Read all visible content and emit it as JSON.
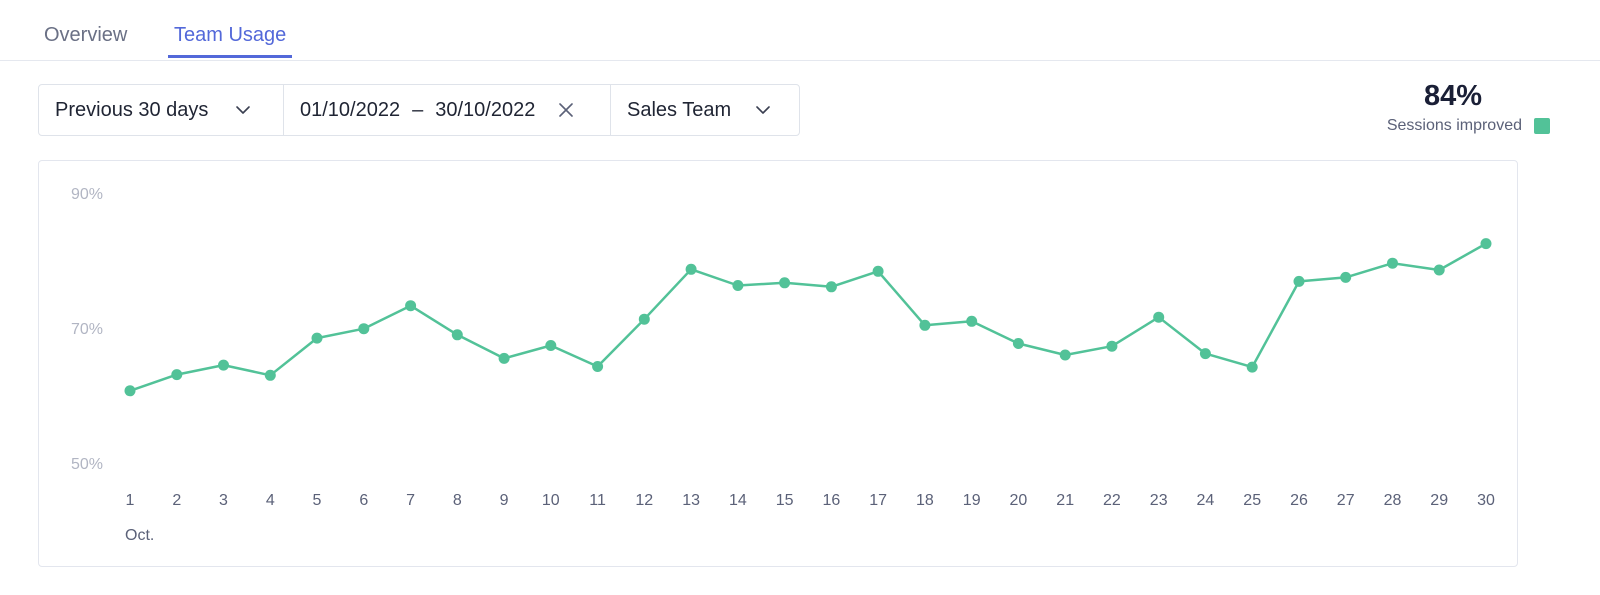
{
  "tabs": [
    {
      "label": "Overview",
      "active": false
    },
    {
      "label": "Team Usage",
      "active": true
    }
  ],
  "filters": {
    "period": "Previous 30 days",
    "date_start": "01/10/2022",
    "date_separator": "–",
    "date_end": "30/10/2022",
    "team": "Sales Team"
  },
  "summary": {
    "value": "84%",
    "label": "Sessions improved"
  },
  "colors": {
    "accent": "#5368d9",
    "series": "#52c298"
  },
  "chart_data": {
    "type": "line",
    "title": "",
    "ylabel": "",
    "xlabel": "Oct.",
    "y_ticks": [
      "90%",
      "70%",
      "50%"
    ],
    "ylim": [
      50,
      90
    ],
    "grid": false,
    "x": [
      1,
      2,
      3,
      4,
      5,
      6,
      7,
      8,
      9,
      10,
      11,
      12,
      13,
      14,
      15,
      16,
      17,
      18,
      19,
      20,
      21,
      22,
      23,
      24,
      25,
      26,
      27,
      28,
      29,
      30
    ],
    "series": [
      {
        "name": "Sessions improved",
        "values": [
          60.7,
          63.1,
          64.5,
          63.0,
          68.5,
          69.9,
          73.3,
          69.0,
          65.5,
          67.4,
          64.3,
          71.3,
          78.7,
          76.3,
          76.7,
          76.1,
          78.4,
          70.4,
          71.0,
          67.7,
          66.0,
          67.3,
          71.6,
          66.2,
          64.2,
          76.9,
          77.5,
          79.6,
          78.6,
          82.5
        ]
      }
    ]
  }
}
